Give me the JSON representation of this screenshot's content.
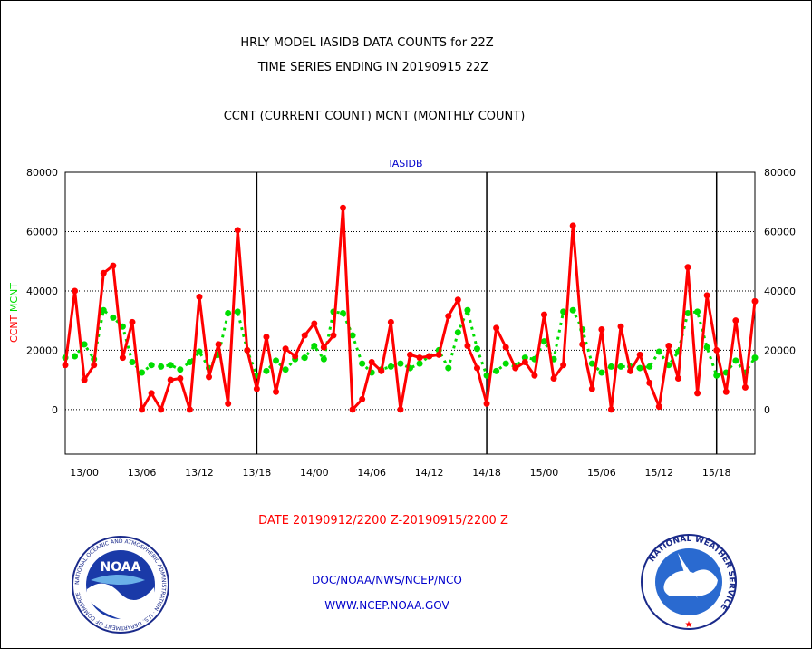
{
  "header": {
    "title_line1": "HRLY MODEL IASIDB DATA COUNTS for 22Z",
    "title_line2": "TIME SERIES ENDING IN 20190915 22Z",
    "subtitle": "CCNT (CURRENT COUNT) MCNT (MONTHLY COUNT)"
  },
  "footer": {
    "date_range": "DATE 20190912/2200 Z-20190915/2200 Z",
    "org_path": "DOC/NOAA/NWS/NCEP/NCO",
    "website": "WWW.NCEP.NOAA.GOV"
  },
  "logos": {
    "noaa_label": "NOAA",
    "nws_label": "NATIONAL WEATHER SERVICE",
    "noaa_ring_text": "NATIONAL OCEANIC AND ATMOSPHERIC ADMINISTRATION · U.S. DEPARTMENT OF COMMERCE"
  },
  "colors": {
    "ccnt": "#ff0000",
    "mcnt": "#00dd00",
    "panel_title": "#0000cc",
    "footer_link": "#0000cc",
    "date_text": "#ff0000"
  },
  "chart_data": {
    "type": "line",
    "title": "IASIDB",
    "ylabel_left_parts": [
      "CCNT",
      "MCNT"
    ],
    "ylim": [
      -15000,
      80000
    ],
    "yticks": [
      0,
      20000,
      40000,
      60000,
      80000
    ],
    "x_tick_labels": [
      "13/00",
      "13/06",
      "13/12",
      "13/18",
      "14/00",
      "14/06",
      "14/12",
      "14/18",
      "15/00",
      "15/06",
      "15/12",
      "15/18"
    ],
    "x_tick_hours": [
      2,
      8,
      14,
      20,
      26,
      32,
      38,
      44,
      50,
      56,
      62,
      68
    ],
    "day_boundaries_hours": [
      20,
      44,
      68
    ],
    "x_range_hours": [
      0,
      72
    ],
    "grid": true,
    "series": [
      {
        "name": "CCNT",
        "values": [
          15000,
          40000,
          10000,
          15000,
          46000,
          48500,
          17500,
          29500,
          0,
          5500,
          0,
          10000,
          10500,
          0,
          38000,
          11000,
          22000,
          2000,
          60500,
          20000,
          7000,
          24500,
          6000,
          20500,
          18000,
          25000,
          29000,
          21000,
          25000,
          68000,
          0,
          3500,
          16000,
          13000,
          29500,
          0,
          18500,
          17500,
          18000,
          18500,
          31500,
          37000,
          21500,
          14000,
          2000,
          27500,
          21000,
          14000,
          16000,
          11500,
          32000,
          10500,
          15000,
          62000,
          22000,
          7000,
          27000,
          0,
          28000,
          13000,
          18500,
          9000,
          1000,
          21500,
          10500,
          48000,
          5500,
          38500,
          20000,
          6000,
          30000,
          7500,
          36500
        ]
      },
      {
        "name": "MCNT",
        "values": [
          17500,
          18000,
          22000,
          17000,
          33500,
          31000,
          28000,
          16000,
          12500,
          15000,
          14500,
          15000,
          13500,
          16000,
          19500,
          14000,
          18500,
          32500,
          33000,
          20000,
          11500,
          13000,
          16500,
          13500,
          17000,
          17500,
          21500,
          17000,
          33000,
          32500,
          25000,
          15500,
          12500,
          13500,
          14500,
          15500,
          14000,
          15500,
          18000,
          20000,
          14000,
          26000,
          33500,
          20500,
          11500,
          13000,
          15500,
          14500,
          17500,
          17000,
          23000,
          17000,
          33000,
          33500,
          27000,
          15500,
          12500,
          14500,
          14500,
          14500,
          14000,
          14500,
          19500,
          15000,
          19500,
          32500,
          33000,
          21000,
          11500,
          12500,
          16500,
          12500,
          17500
        ]
      }
    ]
  }
}
